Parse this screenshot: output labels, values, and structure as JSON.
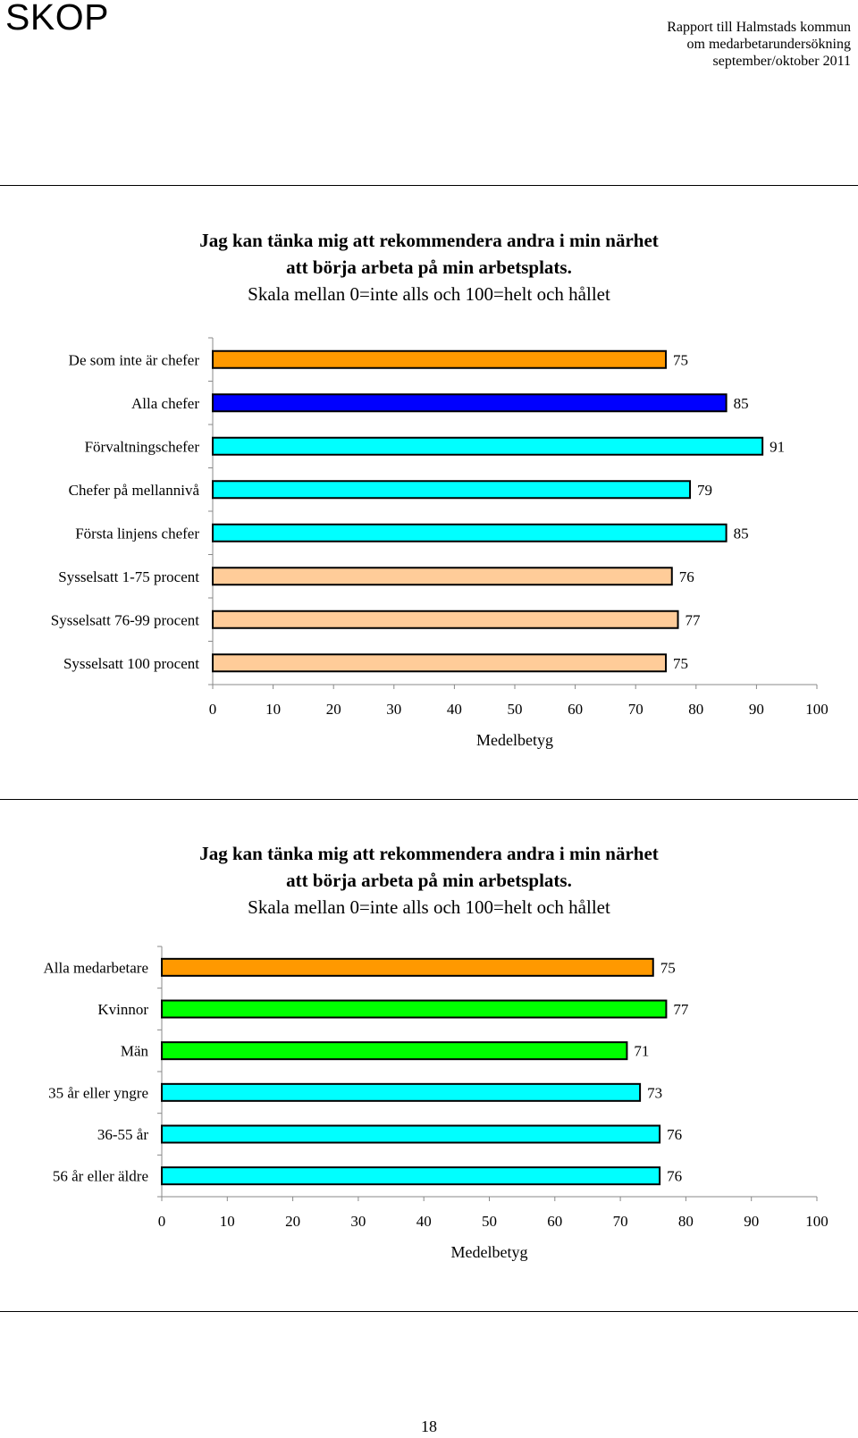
{
  "header": {
    "logo": "SKOP",
    "report_lines": [
      "Rapport till Halmstads kommun",
      "om medarbetarundersökning",
      "september/oktober 2011"
    ]
  },
  "page_number": "18",
  "chart_data": [
    {
      "type": "bar",
      "orientation": "horizontal",
      "title": "Jag kan tänka mig att rekommendera andra i min närhet",
      "title2": "att börja arbeta på min arbetsplats.",
      "subtitle": "Skala mellan 0=inte alls och 100=helt och hållet",
      "xlabel": "Medelbetyg",
      "xlim": [
        0,
        100
      ],
      "xticks": [
        0,
        10,
        20,
        30,
        40,
        50,
        60,
        70,
        80,
        90,
        100
      ],
      "categories": [
        "De som inte är chefer",
        "Alla chefer",
        "Förvaltningschefer",
        "Chefer på mellannivå",
        "Första linjens chefer",
        "Sysselsatt 1-75 procent",
        "Sysselsatt 76-99 procent",
        "Sysselsatt 100 procent"
      ],
      "values": [
        75,
        85,
        91,
        79,
        85,
        76,
        77,
        75
      ],
      "colors": [
        "#ff9900",
        "#0000ff",
        "#00ffff",
        "#00ffff",
        "#00ffff",
        "#ffcc99",
        "#ffcc99",
        "#ffcc99"
      ]
    },
    {
      "type": "bar",
      "orientation": "horizontal",
      "title": "Jag kan tänka mig att rekommendera andra i min närhet",
      "title2": "att börja arbeta på min arbetsplats.",
      "subtitle": "Skala mellan 0=inte alls och 100=helt och hållet",
      "xlabel": "Medelbetyg",
      "xlim": [
        0,
        100
      ],
      "xticks": [
        0,
        10,
        20,
        30,
        40,
        50,
        60,
        70,
        80,
        90,
        100
      ],
      "categories": [
        "Alla medarbetare",
        "Kvinnor",
        "Män",
        "35 år eller yngre",
        "36-55 år",
        "56 år eller äldre"
      ],
      "values": [
        75,
        77,
        71,
        73,
        76,
        76
      ],
      "colors": [
        "#ff9900",
        "#00ff00",
        "#00ff00",
        "#00ffff",
        "#00ffff",
        "#00ffff"
      ]
    }
  ]
}
